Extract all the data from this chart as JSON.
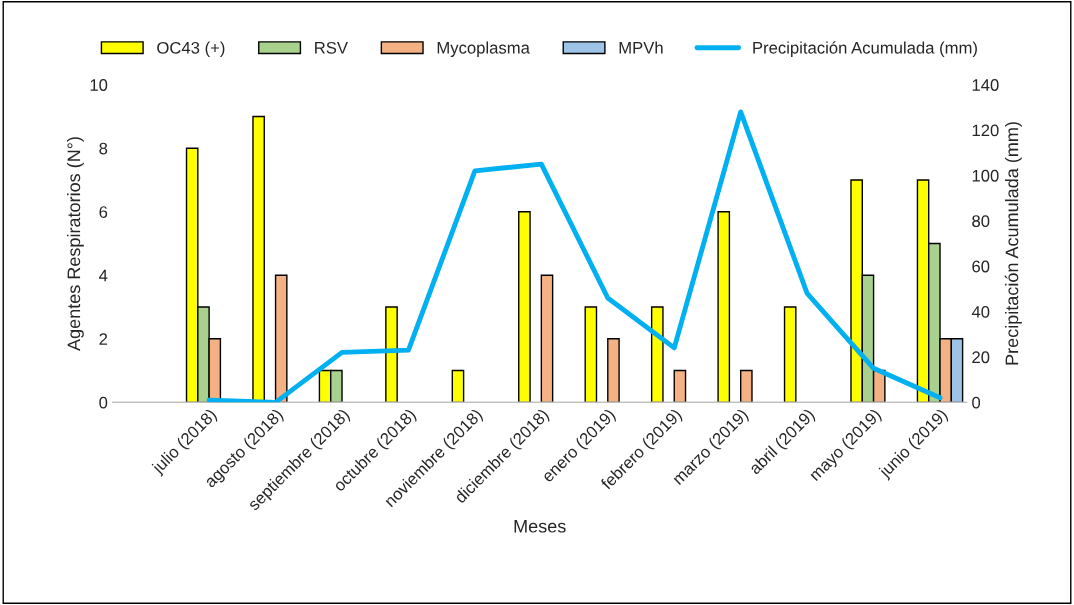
{
  "chart_data": {
    "type": "bar",
    "xlabel": "Meses",
    "ylabel": "Agentes Respiratorios (N°)",
    "y2label": "Precipitación Acumulada (mm)",
    "categories": [
      "julio (2018)",
      "agosto (2018)",
      "septiembre (2018)",
      "octubre (2018)",
      "noviembre (2018)",
      "diciembre (2018)",
      "enero (2019)",
      "febrero (2019)",
      "marzo (2019)",
      "abril (2019)",
      "mayo (2019)",
      "junio (2019)"
    ],
    "series": [
      {
        "name": "OC43 (+)",
        "color": "#ffff00",
        "values": [
          8,
          9,
          1,
          3,
          1,
          6,
          3,
          3,
          6,
          3,
          7,
          7
        ]
      },
      {
        "name": "RSV",
        "color": "#a9d18e",
        "values": [
          3,
          null,
          1,
          null,
          null,
          null,
          null,
          null,
          null,
          null,
          4,
          5
        ]
      },
      {
        "name": "Mycoplasma",
        "color": "#f4b183",
        "values": [
          2,
          4,
          null,
          null,
          null,
          4,
          2,
          1,
          1,
          null,
          1,
          2
        ]
      },
      {
        "name": "MPVh",
        "color": "#9dc3e6",
        "values": [
          null,
          null,
          null,
          null,
          null,
          null,
          null,
          null,
          null,
          null,
          null,
          2
        ]
      },
      {
        "name": "Precipitación Acumulada (mm)",
        "type": "line",
        "axis": "y2",
        "color": "#00b0f0",
        "values": [
          1,
          0,
          22,
          23,
          102,
          105,
          46,
          24,
          128,
          48,
          15,
          2
        ]
      }
    ],
    "ylim": [
      0,
      10
    ],
    "yticks": [
      0,
      2,
      4,
      6,
      8,
      10
    ],
    "y2lim": [
      0,
      140
    ],
    "y2ticks": [
      0,
      20,
      40,
      60,
      80,
      100,
      120,
      140
    ],
    "legend": "top",
    "grid": false
  }
}
